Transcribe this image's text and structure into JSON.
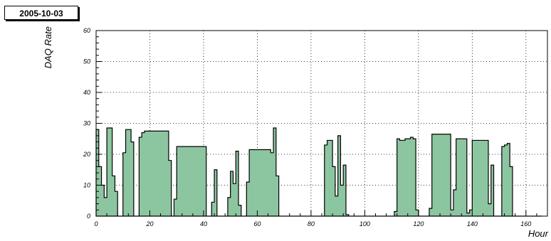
{
  "header": {
    "date_label": "2005-10-03"
  },
  "chart_data": {
    "type": "area",
    "title": "",
    "xlabel": "Hour",
    "ylabel": "DAQ Rate",
    "xlim": [
      0,
      168
    ],
    "ylim": [
      0,
      60
    ],
    "x_ticks": [
      0,
      20,
      40,
      60,
      80,
      100,
      120,
      140,
      160
    ],
    "y_ticks": [
      0,
      10,
      20,
      30,
      40,
      50,
      60
    ],
    "grid": true,
    "fill_color": "#8cc6a0",
    "line_color": "#000000",
    "x_step": 1,
    "values": [
      28,
      16,
      10,
      6,
      28.5,
      28.5,
      13,
      8,
      0,
      0,
      20.5,
      28,
      28,
      24,
      0,
      0,
      25.5,
      27,
      27.5,
      27.5,
      27.5,
      27.5,
      27.5,
      27.5,
      27.5,
      27.5,
      27.5,
      18,
      0,
      5.5,
      22.5,
      22.5,
      22.5,
      22.5,
      22.5,
      22.5,
      22.5,
      22.5,
      22.5,
      22.5,
      22.5,
      0,
      0,
      4.5,
      15,
      0,
      0,
      0,
      0,
      6,
      14.5,
      10.5,
      21,
      3.5,
      0,
      0,
      11,
      21.5,
      21.5,
      21.5,
      21.5,
      21.5,
      21.5,
      21.5,
      21.5,
      20.5,
      28.5,
      13,
      0,
      0,
      0,
      0,
      0,
      0,
      0,
      0,
      0,
      0,
      0,
      0,
      0,
      0,
      0,
      0,
      0,
      23,
      24.5,
      24.5,
      16,
      6.5,
      26,
      10,
      16.5,
      0.5,
      0,
      0,
      0,
      0,
      0,
      0,
      0,
      0,
      0,
      0,
      0,
      0,
      0,
      0,
      0,
      0,
      0,
      1.5,
      25,
      24.5,
      24.5,
      25,
      25,
      25.5,
      25,
      2,
      0,
      0,
      0,
      0,
      2.5,
      26.5,
      26.5,
      26.5,
      26.5,
      26.5,
      26.5,
      26.5,
      2,
      8.5,
      25,
      25,
      25,
      25,
      1,
      2,
      24.5,
      24.5,
      24.5,
      24.5,
      24.5,
      24.5,
      4,
      16.5,
      0,
      0,
      0,
      22.5,
      23,
      23.5,
      16,
      0,
      0,
      0,
      0,
      0,
      0,
      0,
      0,
      0,
      0,
      0
    ]
  }
}
